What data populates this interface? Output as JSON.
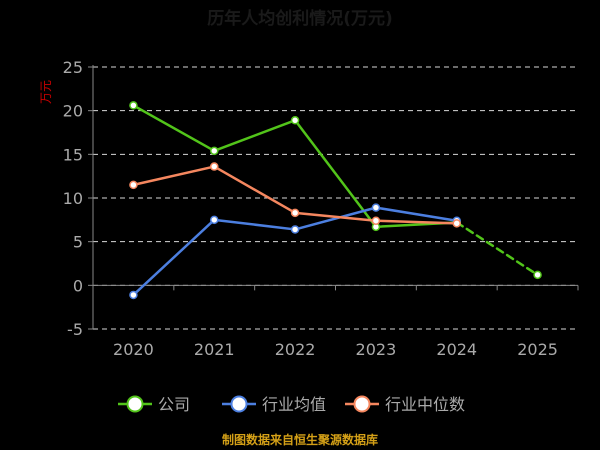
{
  "chart_data": {
    "type": "line",
    "title": "历年人均创利情况(万元)",
    "ylabel": "万元",
    "xlabel": "",
    "categories": [
      "2020",
      "2021",
      "2022",
      "2023",
      "2024",
      "2025"
    ],
    "ylim": [
      -5,
      25
    ],
    "yticks": [
      -5,
      0,
      5,
      10,
      15,
      20,
      25
    ],
    "grid": true,
    "legend_position": "bottom",
    "series": [
      {
        "name": "公司",
        "color": "#52c41a",
        "values": [
          20.6,
          15.4,
          18.9,
          6.7,
          7.2,
          1.2
        ],
        "dashed_from_index": 4
      },
      {
        "name": "行业均值",
        "color": "#4c7fe0",
        "values": [
          -1.1,
          7.5,
          6.4,
          8.9,
          7.4,
          null
        ]
      },
      {
        "name": "行业中位数",
        "color": "#f5875f",
        "values": [
          11.5,
          13.6,
          8.3,
          7.4,
          7.1,
          null
        ]
      }
    ],
    "source_note": "制图数据来自恒生聚源数据库",
    "source_color": "#d4a017",
    "title_color": "#1a1a1a",
    "ylabel_color": "#cc0000",
    "axis_text_color": "#aaaaaa"
  }
}
